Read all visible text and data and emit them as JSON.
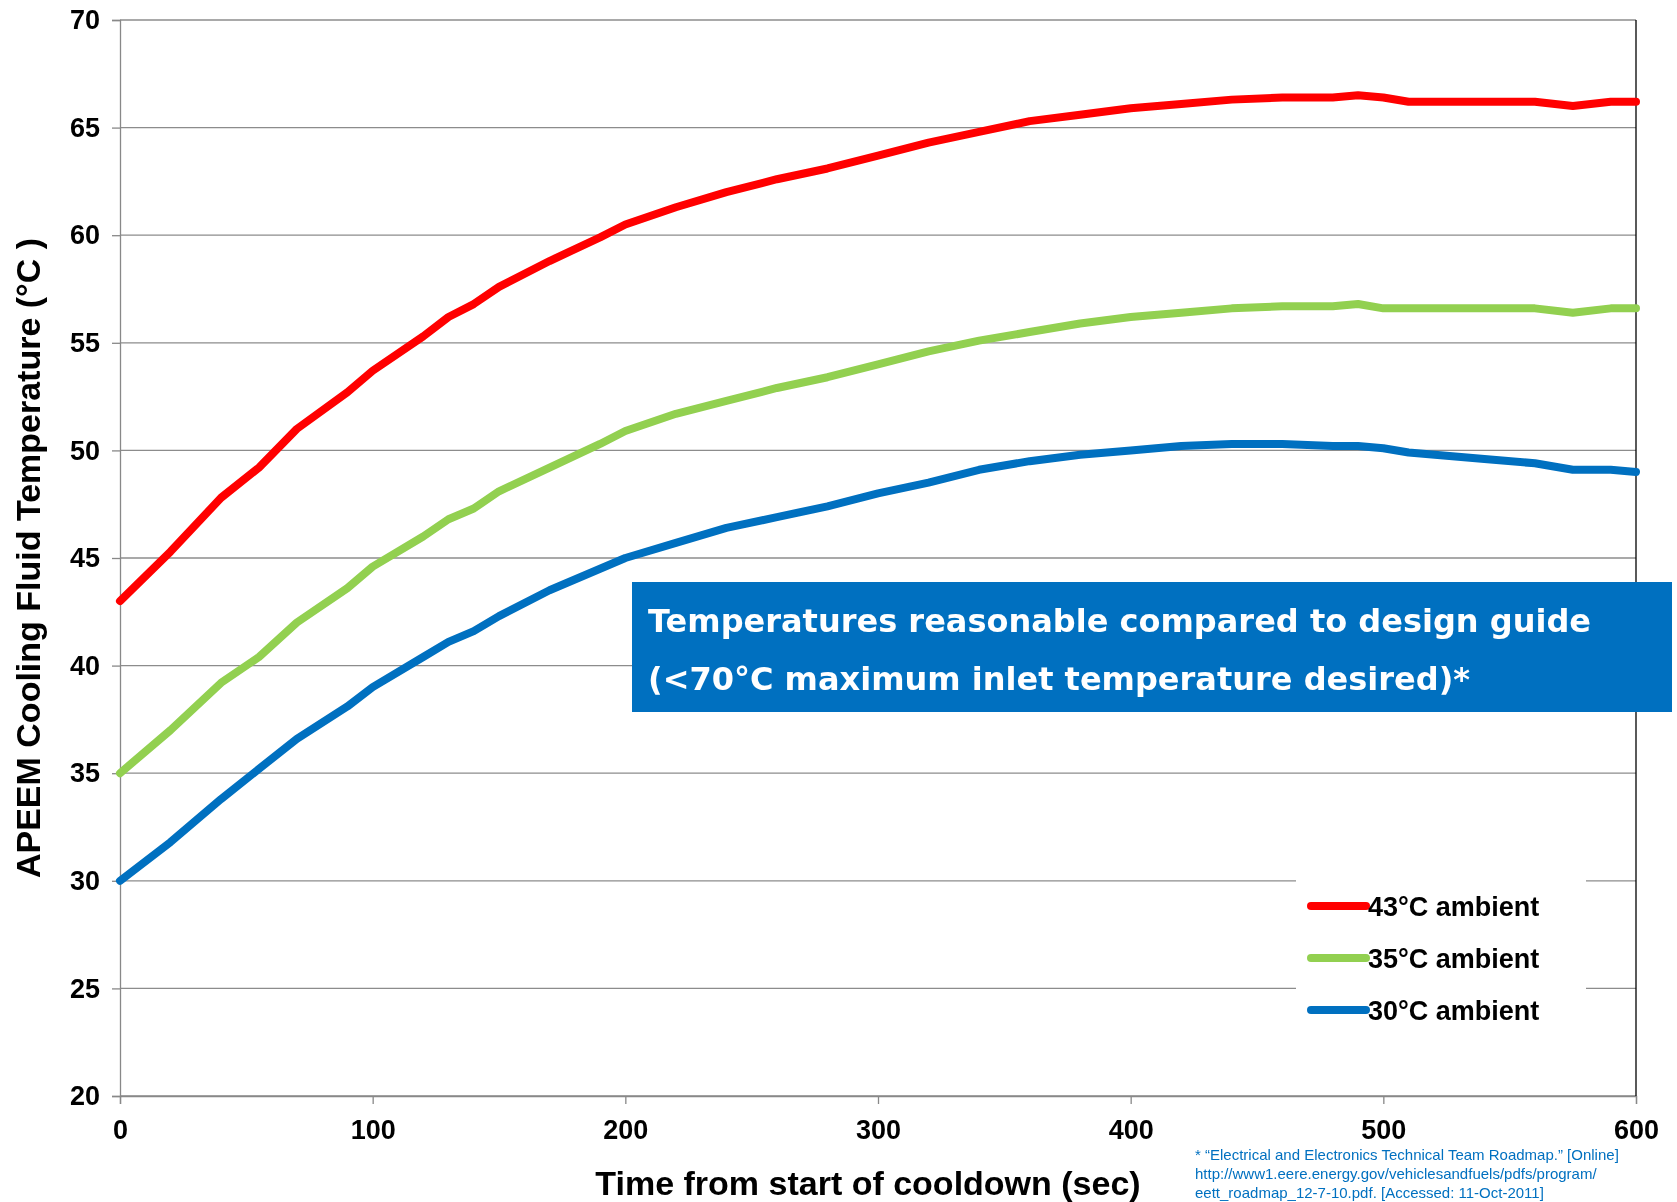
{
  "chart_data": {
    "type": "line",
    "xlabel": "Time from start of cooldown (sec)",
    "ylabel": "APEEM Cooling Fluid Temperature (°C )",
    "x": [
      0,
      20,
      40,
      55,
      70,
      90,
      100,
      120,
      130,
      140,
      150,
      170,
      190,
      200,
      220,
      240,
      260,
      280,
      300,
      320,
      340,
      360,
      380,
      400,
      420,
      440,
      460,
      480,
      490,
      500,
      510,
      540,
      560,
      575,
      590,
      600
    ],
    "series": [
      {
        "name": "43°C ambient",
        "color": "#ff0000",
        "values": [
          43,
          45.3,
          47.8,
          49.2,
          51,
          52.7,
          53.7,
          55.3,
          56.2,
          56.8,
          57.6,
          58.8,
          59.9,
          60.5,
          61.3,
          62,
          62.6,
          63.1,
          63.7,
          64.3,
          64.8,
          65.3,
          65.6,
          65.9,
          66.1,
          66.3,
          66.4,
          66.4,
          66.5,
          66.4,
          66.2,
          66.2,
          66.2,
          66,
          66.2,
          66.2
        ]
      },
      {
        "name": "35°C ambient",
        "color": "#92d050",
        "values": [
          35,
          37,
          39.2,
          40.4,
          42,
          43.6,
          44.6,
          46,
          46.8,
          47.3,
          48.1,
          49.2,
          50.3,
          50.9,
          51.7,
          52.3,
          52.9,
          53.4,
          54,
          54.6,
          55.1,
          55.5,
          55.9,
          56.2,
          56.4,
          56.6,
          56.7,
          56.7,
          56.8,
          56.6,
          56.6,
          56.6,
          56.6,
          56.4,
          56.6,
          56.6
        ]
      },
      {
        "name": "30°C ambient",
        "color": "#0070c0",
        "values": [
          30,
          31.8,
          33.8,
          35.2,
          36.6,
          38.1,
          39,
          40.4,
          41.1,
          41.6,
          42.3,
          43.5,
          44.5,
          45,
          45.7,
          46.4,
          46.9,
          47.4,
          48,
          48.5,
          49.1,
          49.5,
          49.8,
          50,
          50.2,
          50.3,
          50.3,
          50.2,
          50.2,
          50.1,
          49.9,
          49.6,
          49.4,
          49.1,
          49.1,
          49
        ]
      }
    ],
    "xlim": [
      0,
      600
    ],
    "xticks": [
      0,
      100,
      200,
      300,
      400,
      500,
      600
    ],
    "ylim": [
      20,
      70
    ],
    "yticks": [
      20,
      25,
      30,
      35,
      40,
      45,
      50,
      55,
      60,
      65,
      70
    ],
    "grid": "y",
    "legend": "bottom right",
    "marker": "none",
    "line_style": "solid",
    "annotations": [
      "Temperatures reasonable compared to design guide\n(<70°C maximum inlet temperature desired)*",
      "*  “Electrical and Electronics Technical Team Roadmap.” [Online]\nhttp://www1.eere.energy.gov/vehiclesandfuels/pdfs/program/\neett_roadmap_12-7-10.pdf. [Accessed: 11-Oct-2011]"
    ]
  }
}
